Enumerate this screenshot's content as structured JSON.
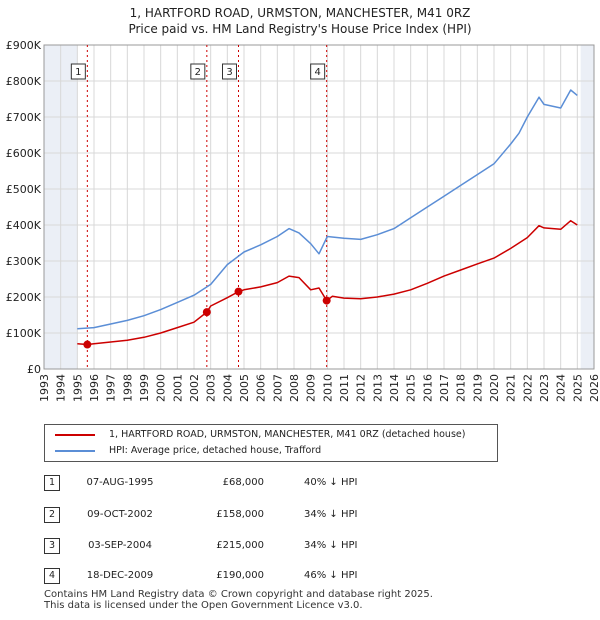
{
  "title_line1": "1, HARTFORD ROAD, URMSTON, MANCHESTER, M41 0RZ",
  "title_line2": "Price paid vs. HM Land Registry's House Price Index (HPI)",
  "colors": {
    "property": "#cc0000",
    "hpi": "#5b8ed6",
    "sale_marker": "#cc0000",
    "shade": "#dde4f0"
  },
  "chart_data": {
    "type": "line",
    "xlabel": "",
    "ylabel": "",
    "xlim": [
      1993,
      2026
    ],
    "ylim": [
      0,
      900000
    ],
    "y_ticks": [
      0,
      100000,
      200000,
      300000,
      400000,
      500000,
      600000,
      700000,
      800000,
      900000
    ],
    "y_tick_labels": [
      "£0",
      "£100K",
      "£200K",
      "£300K",
      "£400K",
      "£500K",
      "£600K",
      "£700K",
      "£800K",
      "£900K"
    ],
    "x_ticks": [
      1993,
      1994,
      1995,
      1996,
      1997,
      1998,
      1999,
      2000,
      2001,
      2002,
      2003,
      2004,
      2005,
      2006,
      2007,
      2008,
      2009,
      2010,
      2011,
      2012,
      2013,
      2014,
      2015,
      2016,
      2017,
      2018,
      2019,
      2020,
      2021,
      2022,
      2023,
      2024,
      2025,
      2026
    ],
    "x_tick_labels": [
      "1993",
      "1994",
      "1995",
      "1996",
      "1997",
      "1998",
      "1999",
      "2000",
      "2001",
      "2002",
      "2003",
      "2004",
      "2005",
      "2006",
      "2007",
      "2008",
      "2009",
      "2010",
      "2011",
      "2012",
      "2013",
      "2014",
      "2015",
      "2016",
      "2017",
      "2018",
      "2019",
      "2020",
      "2021",
      "2022",
      "2023",
      "2024",
      "2025",
      "2026"
    ],
    "shaded_ranges": [
      [
        1993,
        1995.0
      ],
      [
        2025.2,
        2026
      ]
    ],
    "sales": [
      {
        "label": "1",
        "x": 1995.6,
        "y": 68000
      },
      {
        "label": "2",
        "x": 2002.77,
        "y": 158000
      },
      {
        "label": "3",
        "x": 2004.67,
        "y": 215000
      },
      {
        "label": "4",
        "x": 2009.96,
        "y": 190000
      }
    ],
    "series": [
      {
        "name": "1, HARTFORD ROAD, URMSTON, MANCHESTER, M41 0RZ (detached house)",
        "x": [
          1995.0,
          1995.6,
          1996,
          1997,
          1998,
          1999,
          2000,
          2001,
          2002,
          2002.77,
          2003,
          2004,
          2004.67,
          2005,
          2006,
          2007,
          2007.7,
          2008.3,
          2009,
          2009.5,
          2009.96,
          2010.3,
          2011,
          2012,
          2013,
          2014,
          2015,
          2016,
          2017,
          2018,
          2019,
          2020,
          2021,
          2022,
          2022.7,
          2023,
          2024,
          2024.6,
          2025
        ],
        "y": [
          70000,
          68000,
          70000,
          75000,
          80000,
          88000,
          100000,
          115000,
          130000,
          158000,
          175000,
          198000,
          215000,
          220000,
          228000,
          240000,
          258000,
          254000,
          220000,
          225000,
          190000,
          202000,
          197000,
          195000,
          200000,
          208000,
          220000,
          238000,
          258000,
          275000,
          292000,
          308000,
          335000,
          365000,
          398000,
          392000,
          388000,
          412000,
          400000
        ]
      },
      {
        "name": "HPI: Average price, detached house, Trafford",
        "x": [
          1995.0,
          1996,
          1997,
          1998,
          1999,
          2000,
          2001,
          2002,
          2003,
          2004,
          2005,
          2006,
          2007,
          2007.7,
          2008.3,
          2009,
          2009.5,
          2010,
          2011,
          2012,
          2013,
          2014,
          2015,
          2016,
          2017,
          2018,
          2019,
          2020,
          2021,
          2021.5,
          2022,
          2022.7,
          2023,
          2024,
          2024.6,
          2025
        ],
        "y": [
          112000,
          115000,
          125000,
          135000,
          148000,
          165000,
          185000,
          205000,
          235000,
          290000,
          325000,
          345000,
          368000,
          390000,
          378000,
          348000,
          320000,
          368000,
          363000,
          360000,
          373000,
          390000,
          420000,
          450000,
          480000,
          510000,
          540000,
          570000,
          625000,
          655000,
          700000,
          755000,
          735000,
          725000,
          775000,
          760000
        ]
      }
    ]
  },
  "legend": [
    {
      "label": "1, HARTFORD ROAD, URMSTON, MANCHESTER, M41 0RZ (detached house)",
      "color": "#cc0000"
    },
    {
      "label": "HPI: Average price, detached house, Trafford",
      "color": "#5b8ed6"
    }
  ],
  "sales_table": [
    {
      "num": "1",
      "date": "07-AUG-1995",
      "price": "£68,000",
      "hpi": "40% ↓ HPI"
    },
    {
      "num": "2",
      "date": "09-OCT-2002",
      "price": "£158,000",
      "hpi": "34% ↓ HPI"
    },
    {
      "num": "3",
      "date": "03-SEP-2004",
      "price": "£215,000",
      "hpi": "34% ↓ HPI"
    },
    {
      "num": "4",
      "date": "18-DEC-2009",
      "price": "£190,000",
      "hpi": "46% ↓ HPI"
    }
  ],
  "footer_line1": "Contains HM Land Registry data © Crown copyright and database right 2025.",
  "footer_line2": "This data is licensed under the Open Government Licence v3.0."
}
